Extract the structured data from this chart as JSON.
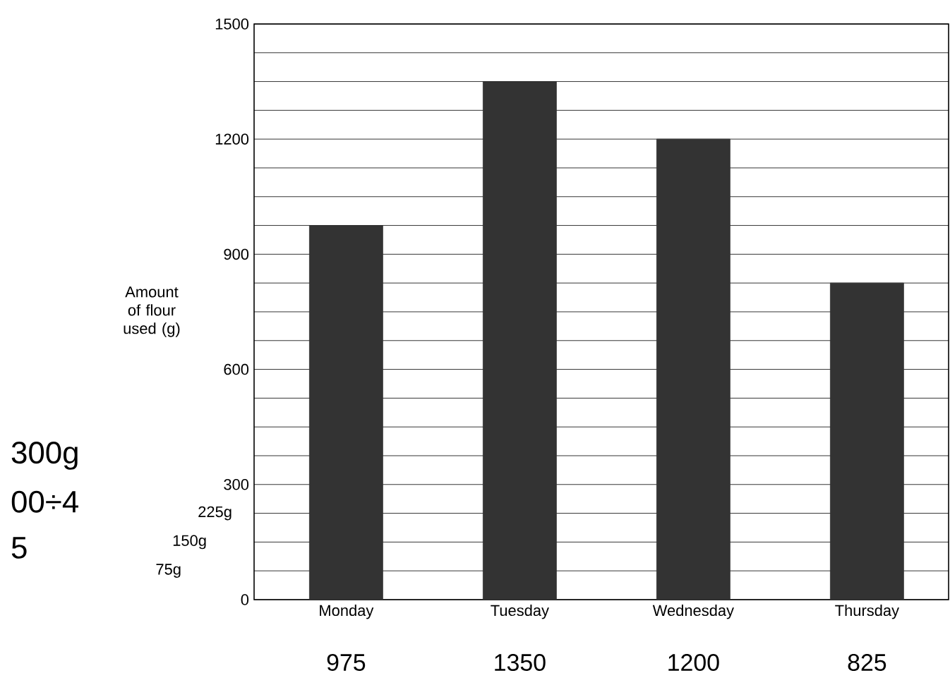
{
  "chart_data": {
    "type": "bar",
    "ylabel": "Amount of flour used (g)",
    "categories": [
      "Monday",
      "Tuesday",
      "Wednesday",
      "Thursday"
    ],
    "values": [
      975,
      1350,
      1200,
      825
    ],
    "value_labels": [
      "975",
      "1350",
      "1200",
      "825"
    ],
    "color": "#333333",
    "ylim": [
      0,
      1500
    ],
    "yticks": [
      0,
      {
        "value": 75,
        "label": null
      },
      {
        "value": 150,
        "label": null
      },
      {
        "value": 225,
        "label": null
      },
      300,
      {
        "value": 375,
        "label": null
      },
      {
        "value": 450,
        "label": null
      },
      {
        "value": 525,
        "label": null
      },
      600,
      {
        "value": 675,
        "label": null
      },
      {
        "value": 750,
        "label": null
      },
      {
        "value": 825,
        "label": null
      },
      900,
      {
        "value": 975,
        "label": null
      },
      {
        "value": 1050,
        "label": null
      },
      {
        "value": 1125,
        "label": null
      },
      1200,
      {
        "value": 1275,
        "label": null
      },
      {
        "value": 1350,
        "label": null
      },
      {
        "value": 1425,
        "label": null
      },
      1500
    ],
    "grid": "y",
    "annotations": [
      "300g",
      "00÷4",
      "5",
      "225g",
      "150g",
      "75g"
    ]
  }
}
